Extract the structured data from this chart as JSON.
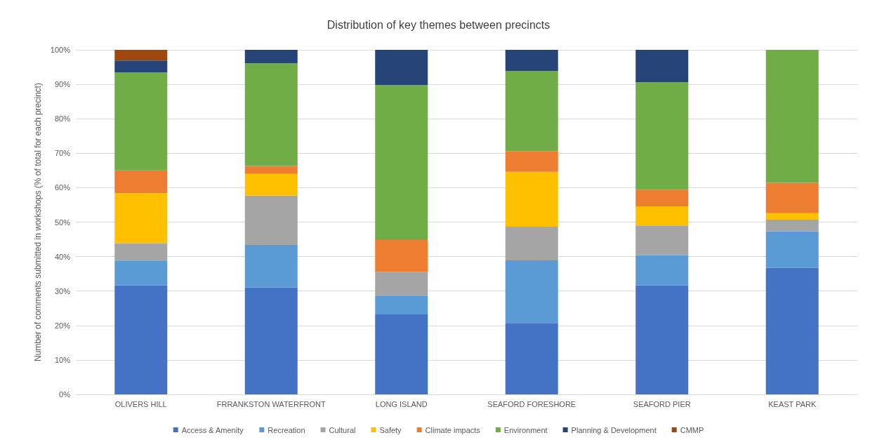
{
  "chart_data": {
    "type": "bar",
    "title": "Distribution of key themes between precincts",
    "ylabel": "Number of comments submitted in workshops (% of total for each precinct)",
    "categories": [
      "OLIVERS HILL",
      "FRRANKSTON WATERFRONT",
      "LONG ISLAND",
      "SEAFORD FORESHORE",
      "SEAFORD PIER",
      "KEAST PARK"
    ],
    "stacked": true,
    "series": [
      {
        "name": "Access & Amenity",
        "color": "#4472c4",
        "values": [
          31.6,
          31.0,
          23.2,
          20.7,
          31.6,
          36.7
        ]
      },
      {
        "name": "Recreation",
        "color": "#5b9bd5",
        "values": [
          7.1,
          12.4,
          5.3,
          18.2,
          8.8,
          10.6
        ]
      },
      {
        "name": "Cultural",
        "color": "#a5a5a5",
        "values": [
          5.2,
          14.3,
          7.1,
          9.8,
          8.5,
          3.4
        ]
      },
      {
        "name": "Safety",
        "color": "#ffc000",
        "values": [
          14.5,
          6.3,
          0,
          15.9,
          5.7,
          1.9
        ]
      },
      {
        "name": "Climate impacts",
        "color": "#ed7d31",
        "values": [
          6.6,
          2.3,
          9.2,
          6.0,
          4.8,
          8.8
        ]
      },
      {
        "name": "Environment",
        "color": "#70ad47",
        "values": [
          28.5,
          29.8,
          45.0,
          23.3,
          31.2,
          38.6
        ]
      },
      {
        "name": "Planning & Development",
        "color": "#264478",
        "values": [
          3.4,
          3.9,
          10.2,
          6.1,
          9.4,
          0
        ]
      },
      {
        "name": "CMMP",
        "color": "#9e480e",
        "values": [
          3.1,
          0,
          0,
          0,
          0,
          0
        ]
      }
    ],
    "ylim": [
      0,
      100
    ],
    "yticks": [
      {
        "value": 0,
        "label": "0%"
      },
      {
        "value": 10,
        "label": "10%"
      },
      {
        "value": 20,
        "label": "20%"
      },
      {
        "value": 30,
        "label": "30%"
      },
      {
        "value": 40,
        "label": "40%"
      },
      {
        "value": 50,
        "label": "50%"
      },
      {
        "value": 60,
        "label": "60%"
      },
      {
        "value": 70,
        "label": "70%"
      },
      {
        "value": 80,
        "label": "80%"
      },
      {
        "value": 90,
        "label": "90%"
      },
      {
        "value": 100,
        "label": "100%"
      }
    ],
    "grid": "y",
    "legend": "bottom"
  }
}
